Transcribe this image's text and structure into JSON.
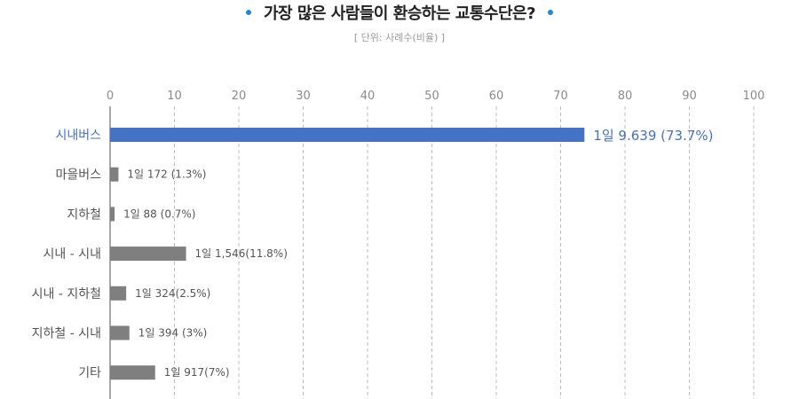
{
  "chart_data": {
    "type": "bar",
    "orientation": "horizontal",
    "title": "가장 많은 사람들이 환승하는 교통수단은?",
    "subtitle": "[ 단위: 사례수(비율) ]",
    "xlim": [
      0,
      100
    ],
    "x_ticks": [
      "0",
      "10",
      "20",
      "30",
      "40",
      "50",
      "60",
      "70",
      "80",
      "90",
      "100"
    ],
    "grid": true,
    "categories": [
      "시내버스",
      "마을버스",
      "지하철",
      "시내 - 시내",
      "시내 - 지하철",
      "지하철 - 시내",
      "기타"
    ],
    "values": [
      73.7,
      1.3,
      0.7,
      11.8,
      2.5,
      3,
      7
    ],
    "data_labels": [
      "1일 9.639 (73.7%)",
      "1일 172 (1.3%)",
      "1일 88 (0.7%)",
      "1일 1,546(11.8%)",
      "1일 324(2.5%)",
      "1일 394 (3%)",
      "1일 917(7%)"
    ],
    "highlight_index": 0,
    "colors": {
      "highlight": "#4472c4",
      "bar": "#7f7f7f",
      "grid": "#bdbdbd",
      "axis": "#888888",
      "tick_text": "#8a8a8a",
      "label_text": "#555555",
      "title_dot": "#1e88d6"
    }
  }
}
